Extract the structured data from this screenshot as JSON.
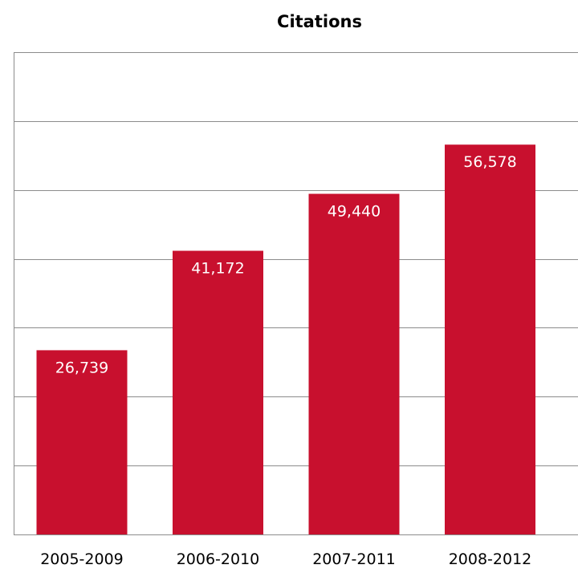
{
  "chart_data": {
    "type": "bar",
    "title": "Citations",
    "xlabel": "",
    "ylabel": "",
    "categories": [
      "2005-2009",
      "2006-2010",
      "2007-2011",
      "2008-2012"
    ],
    "values": [
      26739,
      41172,
      49440,
      56578
    ],
    "data_labels": [
      "26,739",
      "41,172",
      "49,440",
      "56,578"
    ],
    "ylim": [
      0,
      70000
    ],
    "y_gridline_step": 10000,
    "y_tick_labels_shown": false,
    "grid": true,
    "legend": "none",
    "bar_color": "#c8102e",
    "data_label_color": "#ffffff",
    "grid_color": "#8c8c8c"
  }
}
